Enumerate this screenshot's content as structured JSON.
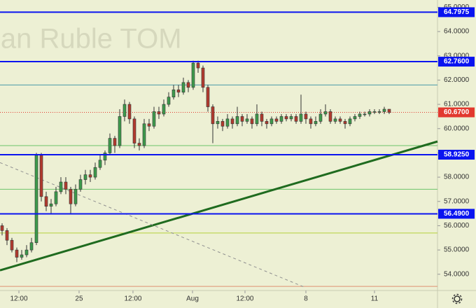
{
  "chart_data": {
    "type": "candlestick",
    "watermark": "ian Ruble TOM",
    "up_color": "#3d9a4c",
    "down_color": "#b23a2e",
    "xlim": [
      -0.43,
      88.86
    ],
    "ylim": [
      53.33,
      65.3
    ],
    "grid": false,
    "xticks": [
      {
        "value": 3.43,
        "label": "12:00"
      },
      {
        "value": 15.71,
        "label": "25"
      },
      {
        "value": 26.71,
        "label": "12:00"
      },
      {
        "value": 38.86,
        "label": "Aug"
      },
      {
        "value": 49.57,
        "label": "12:00"
      },
      {
        "value": 62,
        "label": "8"
      },
      {
        "value": 76,
        "label": "11"
      }
    ],
    "yticks": [
      {
        "value": 54,
        "label": "54.0000"
      },
      {
        "value": 55,
        "label": "55.0000"
      },
      {
        "value": 56,
        "label": "56.0000"
      },
      {
        "value": 57,
        "label": "57.0000"
      },
      {
        "value": 58,
        "label": "58.0000"
      },
      {
        "value": 59,
        "label": "59.0000"
      },
      {
        "value": 60,
        "label": "60.0000"
      },
      {
        "value": 61,
        "label": "61.0000"
      },
      {
        "value": 62,
        "label": "62.0000"
      },
      {
        "value": 63,
        "label": "63.0000"
      },
      {
        "value": 64,
        "label": "64.0000"
      },
      {
        "value": 65,
        "label": "65.0000"
      }
    ],
    "levels": [
      {
        "value": 64.7975,
        "color": "#0a14f0"
      },
      {
        "value": 62.76,
        "label": "62.7600",
        "color": "#0a14f0"
      },
      {
        "value": 58.925,
        "label": "58.9250",
        "color": "#0a14f0"
      },
      {
        "value": 56.49,
        "label": "56.4900",
        "color": "#0a14f0"
      }
    ],
    "last_price": {
      "value": 60.67,
      "label": "60.6700",
      "color": "#e2392f"
    },
    "thin_lines": [
      {
        "value": 61.8,
        "color": "#4a9aa8"
      },
      {
        "value": 59.3,
        "color": "#6cc46a"
      },
      {
        "value": 57.5,
        "color": "#6cc46a"
      },
      {
        "value": 55.7,
        "color": "#b5cf3a"
      },
      {
        "value": 53.5,
        "color": "#e09070"
      }
    ],
    "trendlines": [
      {
        "x": [
          -0.43,
          88.86
        ],
        "y": [
          54.16,
          59.47
        ],
        "color": "#1f6b1f",
        "dashed": false
      },
      {
        "x": [
          -0.43,
          61.7
        ],
        "y": [
          58.6,
          53.47
        ],
        "color": "#909090",
        "dashed": true
      }
    ],
    "open": [
      56.0,
      55.8,
      55.4,
      55.0,
      54.7,
      54.8,
      55.0,
      55.3,
      58.9,
      57.2,
      56.8,
      56.9,
      57.4,
      57.8,
      57.5,
      56.9,
      57.5,
      57.9,
      58.1,
      58.0,
      58.4,
      58.7,
      59.0,
      59.6,
      59.3,
      60.5,
      61.0,
      60.4,
      59.4,
      59.3,
      60.2,
      60.1,
      60.7,
      60.6,
      61.0,
      61.3,
      61.6,
      61.5,
      61.9,
      61.7,
      62.7,
      62.5,
      61.7,
      60.9,
      60.2,
      60.3,
      60.1,
      60.4,
      60.2,
      60.5,
      60.3,
      60.4,
      60.2,
      60.6,
      60.3,
      60.2,
      60.4,
      60.3,
      60.5,
      60.4,
      60.5,
      60.3,
      60.6,
      60.4,
      60.2,
      60.3,
      60.6,
      60.7,
      60.3,
      60.4,
      60.3,
      60.2,
      60.4,
      60.5,
      60.6,
      60.6,
      60.7,
      60.7,
      60.7,
      60.8
    ],
    "high": [
      56.1,
      55.9,
      55.5,
      55.1,
      55.0,
      55.2,
      55.5,
      59.0,
      59.0,
      57.4,
      57.1,
      57.6,
      58.0,
      58.0,
      57.6,
      57.7,
      58.1,
      58.3,
      58.3,
      58.6,
      58.9,
      59.1,
      59.8,
      59.7,
      60.8,
      61.2,
      61.1,
      60.5,
      59.6,
      60.4,
      60.4,
      60.9,
      60.9,
      61.2,
      61.5,
      61.8,
      61.8,
      62.1,
      62.0,
      62.8,
      62.8,
      62.6,
      61.8,
      61.0,
      60.5,
      60.4,
      60.6,
      60.5,
      60.9,
      60.6,
      60.6,
      60.5,
      61.0,
      60.7,
      60.4,
      60.5,
      60.5,
      60.6,
      60.6,
      60.6,
      60.6,
      61.4,
      60.7,
      60.5,
      60.5,
      60.8,
      61.0,
      60.8,
      60.5,
      60.5,
      60.4,
      60.5,
      60.6,
      60.7,
      60.7,
      60.8,
      60.8,
      60.8,
      60.9,
      60.8
    ],
    "low": [
      55.6,
      55.2,
      54.9,
      54.5,
      54.6,
      54.7,
      54.9,
      55.2,
      57.0,
      56.6,
      56.5,
      56.8,
      57.3,
      57.3,
      56.5,
      56.8,
      57.4,
      57.7,
      57.8,
      57.9,
      58.3,
      58.5,
      58.9,
      59.0,
      59.2,
      60.3,
      60.2,
      59.2,
      59.1,
      59.2,
      59.9,
      60.0,
      60.4,
      60.5,
      60.9,
      61.2,
      61.3,
      61.4,
      61.5,
      61.6,
      62.3,
      61.5,
      60.7,
      59.4,
      60.0,
      59.9,
      60.0,
      60.0,
      60.1,
      60.1,
      60.2,
      60.0,
      60.1,
      60.1,
      60.0,
      60.1,
      60.2,
      60.2,
      60.3,
      60.3,
      60.2,
      60.2,
      60.2,
      60.0,
      60.1,
      60.2,
      60.5,
      60.2,
      60.2,
      60.2,
      60.0,
      60.1,
      60.3,
      60.4,
      60.5,
      60.5,
      60.6,
      60.6,
      60.6,
      60.6
    ],
    "close": [
      55.8,
      55.4,
      55.0,
      54.7,
      54.8,
      55.0,
      55.3,
      58.9,
      57.2,
      56.8,
      56.9,
      57.4,
      57.8,
      57.5,
      56.9,
      57.5,
      57.9,
      58.1,
      58.0,
      58.4,
      58.7,
      59.0,
      59.6,
      59.3,
      60.5,
      61.0,
      60.4,
      59.4,
      59.3,
      60.2,
      60.1,
      60.7,
      60.6,
      61.0,
      61.3,
      61.6,
      61.5,
      61.9,
      61.7,
      62.7,
      62.5,
      61.7,
      60.9,
      60.2,
      60.3,
      60.1,
      60.4,
      60.2,
      60.5,
      60.3,
      60.4,
      60.2,
      60.6,
      60.3,
      60.2,
      60.4,
      60.3,
      60.5,
      60.4,
      60.5,
      60.3,
      60.6,
      60.4,
      60.2,
      60.3,
      60.6,
      60.7,
      60.3,
      60.4,
      60.3,
      60.2,
      60.4,
      60.5,
      60.6,
      60.6,
      60.7,
      60.7,
      60.7,
      60.8,
      60.67
    ]
  }
}
